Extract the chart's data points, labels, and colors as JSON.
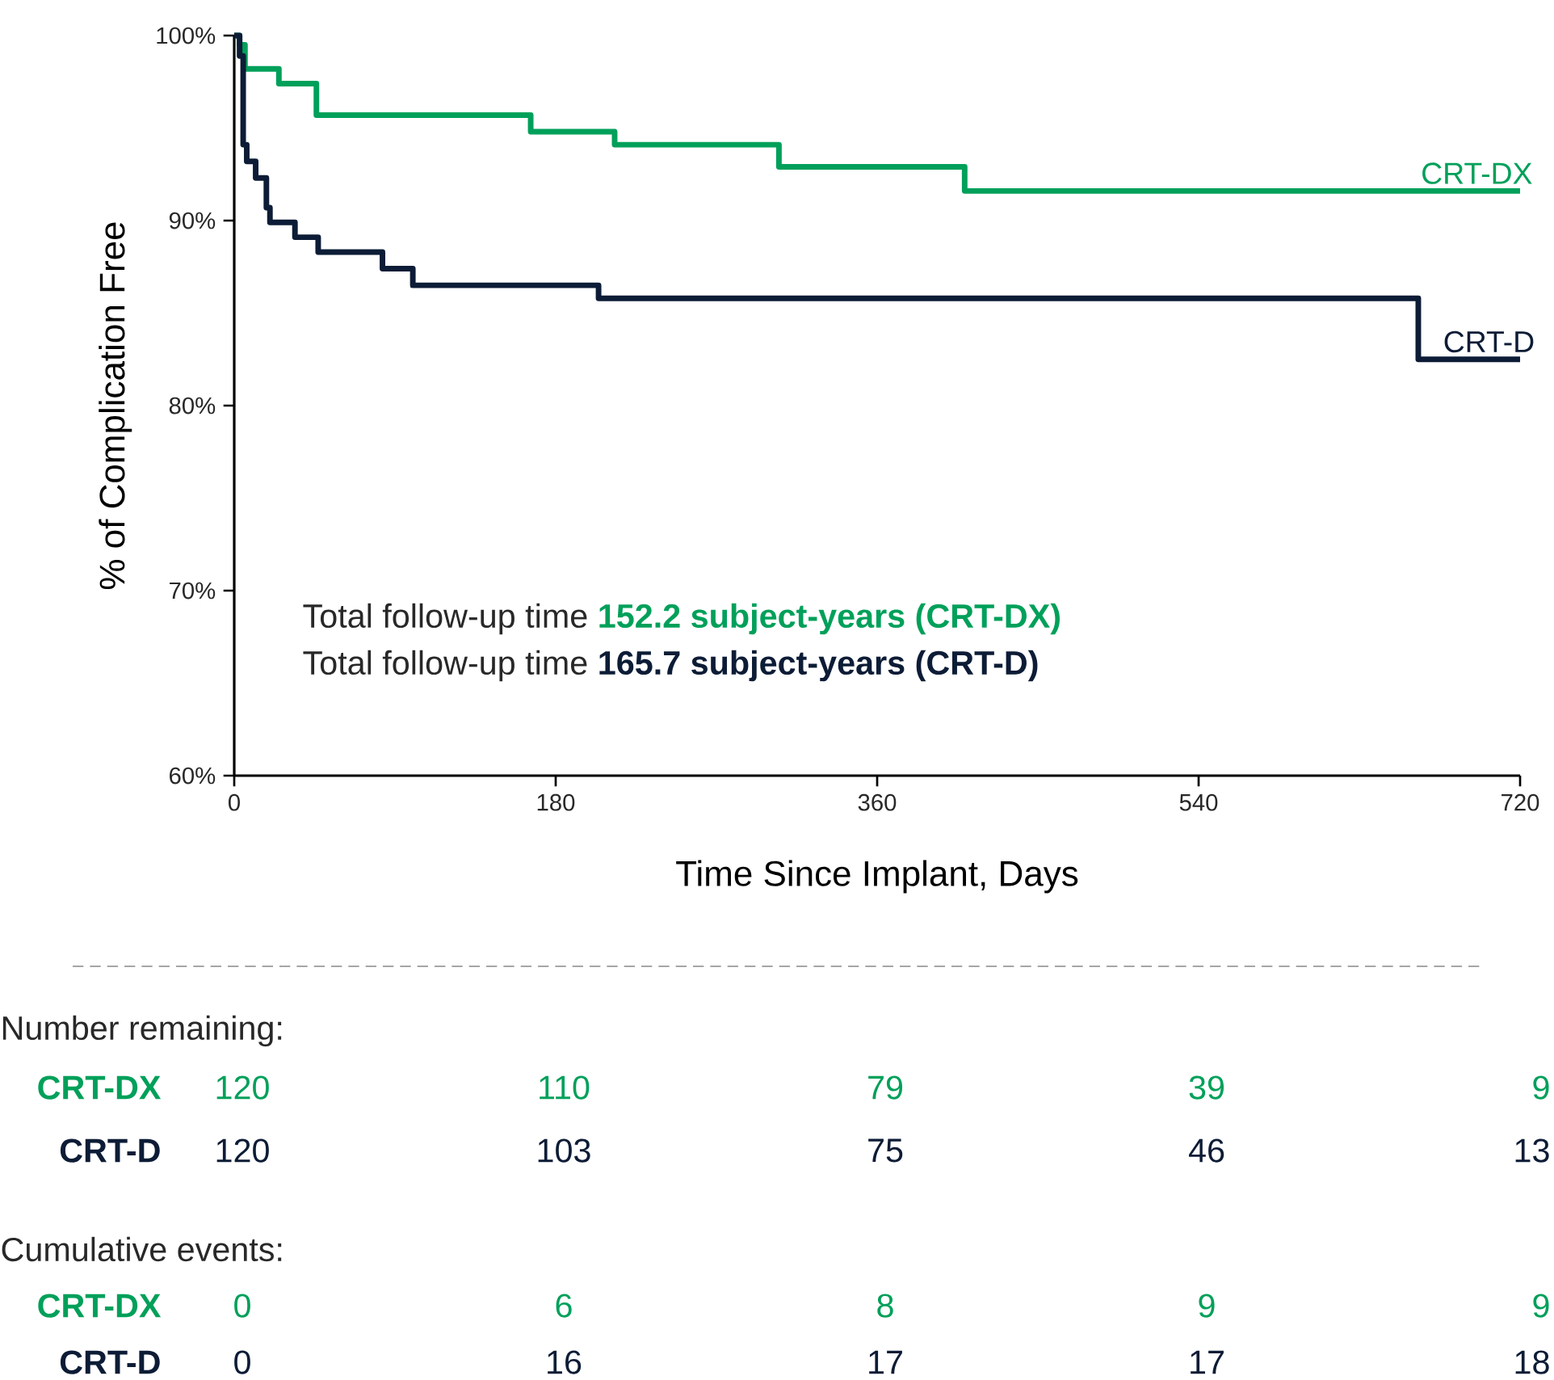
{
  "chart_data": {
    "type": "step",
    "xlabel": "Time Since Implant, Days",
    "ylabel": "% of Complication Free",
    "xlim": [
      0,
      720
    ],
    "ylim": [
      60,
      100
    ],
    "xticks": [
      0,
      180,
      360,
      540,
      720
    ],
    "yticks": [
      {
        "value": 60,
        "label": "60%"
      },
      {
        "value": 70,
        "label": "70%"
      },
      {
        "value": 80,
        "label": "80%"
      },
      {
        "value": 90,
        "label": "90%"
      },
      {
        "value": 100,
        "label": "100%"
      }
    ],
    "grid": false,
    "legend": false,
    "marker": "none",
    "line_style": "solid",
    "series": [
      {
        "name": "CRT-DX",
        "color": "#00a05a",
        "x": [
          0,
          3,
          6,
          25,
          46,
          166,
          213,
          305,
          409,
          720
        ],
        "values": [
          100,
          99.5,
          98.2,
          97.4,
          95.7,
          94.8,
          94.1,
          92.9,
          91.6,
          91.6
        ]
      },
      {
        "name": "CRT-D",
        "color": "#0d1c36",
        "x": [
          0,
          3,
          5,
          7,
          12,
          18,
          20,
          34,
          47,
          83,
          100,
          204,
          663,
          720
        ],
        "values": [
          100,
          98.9,
          94.1,
          93.2,
          92.3,
          90.7,
          89.9,
          89.1,
          88.3,
          87.4,
          86.5,
          85.8,
          82.5,
          82.5
        ]
      }
    ],
    "annotations": [
      "Total follow-up time **152.2 subject-years (CRT-DX)**",
      "Total follow-up time **165.7 subject-years (CRT-D)**",
      "Number remaining:",
      "CRT-DX",
      "120",
      "110",
      "79",
      "39",
      "9",
      "CRT-D",
      "120",
      "103",
      "75",
      "46",
      "13",
      "Cumulative events:",
      "CRT-DX",
      "0",
      "6",
      "8",
      "9",
      "9",
      "CRT-D",
      "0",
      "16",
      "17",
      "17",
      "18"
    ]
  }
}
